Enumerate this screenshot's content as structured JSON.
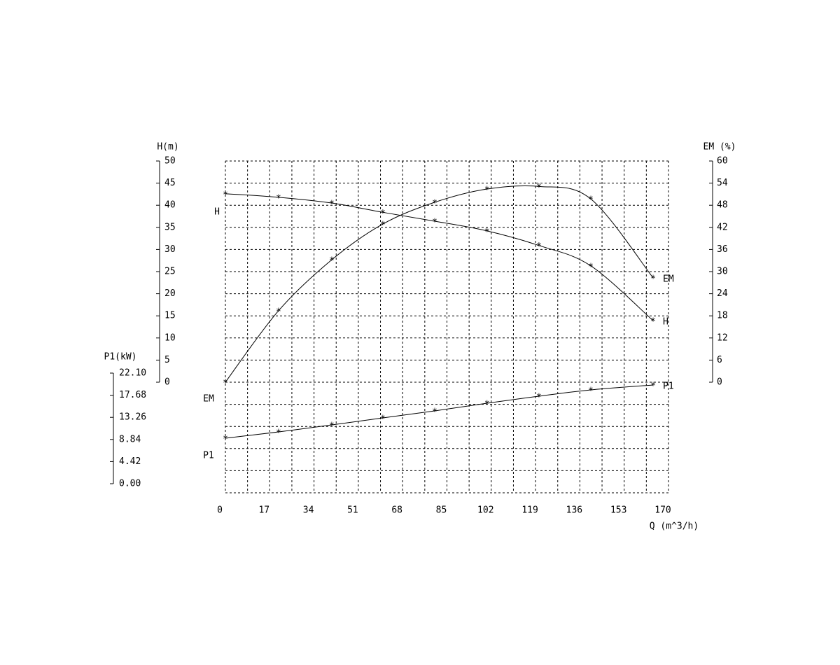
{
  "chart_data": {
    "type": "line",
    "x_label": "Q (m^3/h)",
    "y_label": "H(m)",
    "y2_label": "EM (%)",
    "y3_label": "P1(kW)",
    "x": [
      0,
      20.4,
      40.8,
      60.4,
      80.3,
      100.4,
      120.3,
      140.2,
      164.1
    ],
    "series": [
      {
        "name": "H",
        "axis": "y",
        "color": "#000000",
        "values": [
          42.6,
          41.8,
          40.5,
          38.4,
          36.4,
          34.2,
          30.9,
          26.3,
          13.9
        ]
      },
      {
        "name": "EM",
        "axis": "y2",
        "color": "#000000",
        "values": [
          0,
          19.4,
          33.2,
          42.9,
          48.8,
          52.4,
          53.1,
          49.7,
          28.3
        ]
      },
      {
        "name": "P1",
        "axis": "y3",
        "color": "#000000",
        "values": [
          9.09,
          10.35,
          11.75,
          13.15,
          14.55,
          16.09,
          17.49,
          18.75,
          19.73
        ]
      }
    ],
    "xlim": [
      0,
      170
    ],
    "xticks": [
      0,
      17,
      34,
      51,
      68,
      85,
      102,
      119,
      136,
      153,
      170
    ],
    "ylim": [
      0,
      50
    ],
    "yticks": [
      0,
      5,
      10,
      15,
      20,
      25,
      30,
      35,
      40,
      45,
      50
    ],
    "y2lim": [
      0,
      60
    ],
    "y2ticks": [
      0,
      6,
      12,
      18,
      24,
      30,
      36,
      42,
      48,
      54,
      60
    ],
    "y3lim": [
      0,
      22.1
    ],
    "y3ticks": [
      {
        "value": 0,
        "label": "0.00"
      },
      4.42,
      8.84,
      13.26,
      17.68,
      {
        "value": 22.1,
        "label": "22.10"
      }
    ],
    "grid": true
  }
}
